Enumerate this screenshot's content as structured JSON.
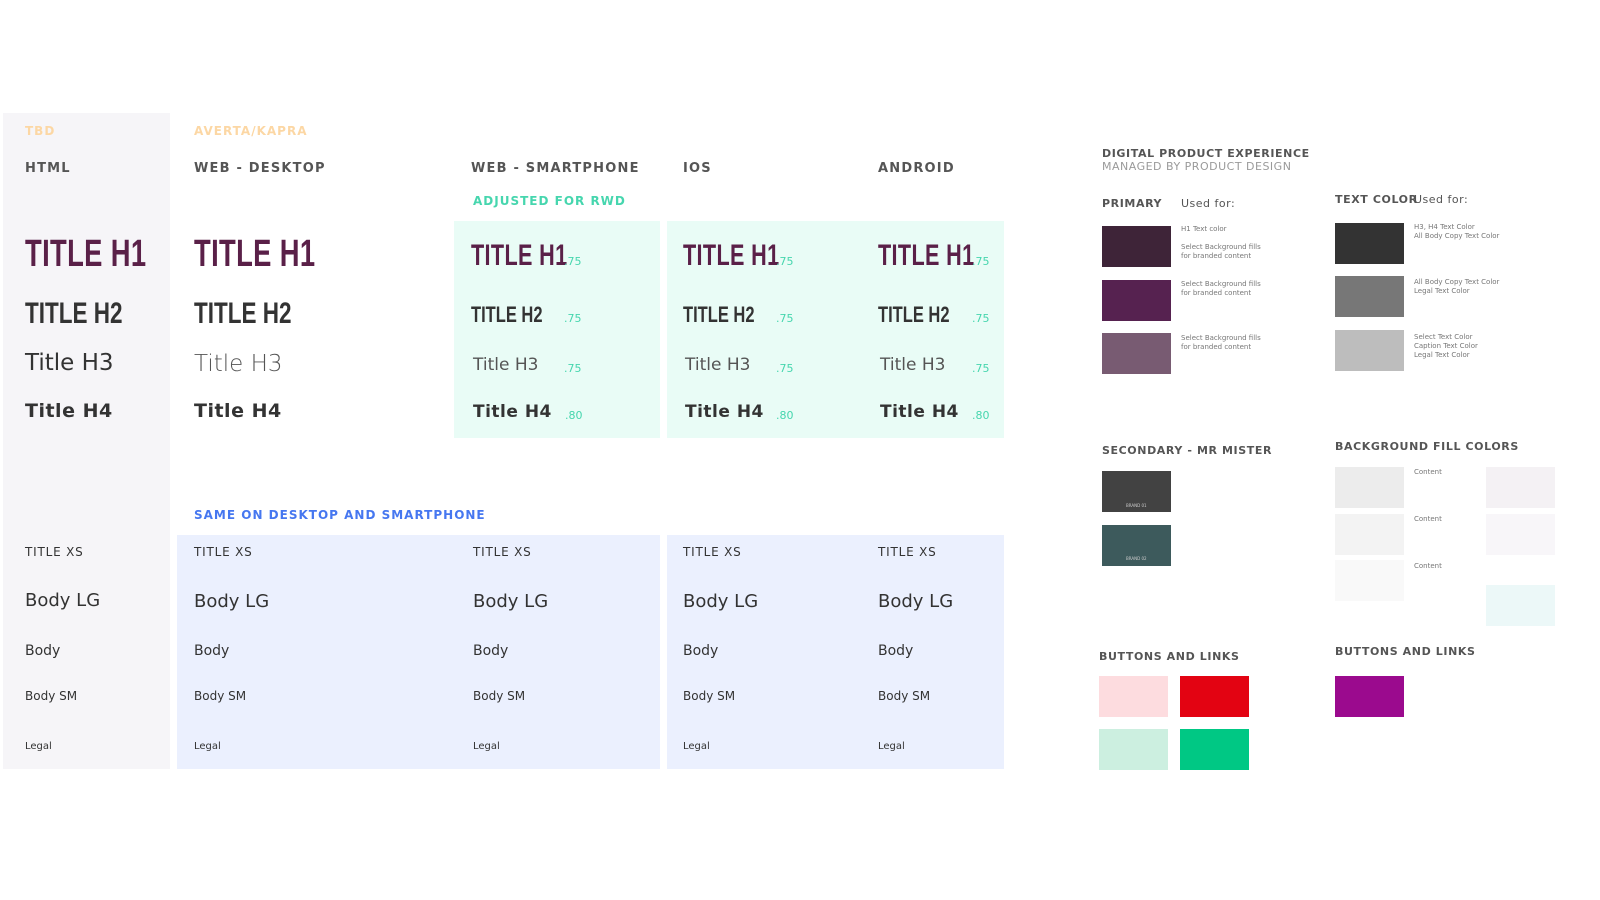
{
  "columns": {
    "tbd": "TBD",
    "html": "HTML",
    "averta": "AVERTA/KAPRA",
    "web_desktop": "WEB - DESKTOP",
    "web_smartphone": "WEB - SMARTPHONE",
    "ios": "IOS",
    "android": "ANDROID",
    "adjusted": "ADJUSTED FOR RWD",
    "same": "SAME ON DESKTOP AND SMARTPHONE"
  },
  "titles": {
    "h1": "TITLE H1",
    "h2": "TITLE H2",
    "h3": "Title H3",
    "h4": "Title H4"
  },
  "scales": {
    "s75": ".75",
    "s80": ".80"
  },
  "body": {
    "title_xs": "TITLE XS",
    "body_lg": "Body LG",
    "body": "Body",
    "body_sm": "Body SM",
    "legal": "Legal"
  },
  "colors_section": {
    "heading": "DIGITAL PRODUCT EXPERIENCE",
    "subheading": "MANAGED BY PRODUCT DESIGN",
    "primary": "PRIMARY",
    "used_for": "Used  for:",
    "text_color": "TEXT COLOR",
    "text_used_for": "Used  for:",
    "primary_notes": [
      [
        "H1 Text color",
        "Select Background fills",
        "for branded content"
      ],
      [
        "Select Background fills",
        "for branded content"
      ],
      [
        "Select Background fills",
        "for branded content"
      ]
    ],
    "text_notes": [
      [
        "H3, H4 Text Color",
        "All Body Copy Text Color"
      ],
      [
        "All Body Copy Text Color",
        "Legal Text Color"
      ],
      [
        "Select Text Color",
        "Caption Text Color",
        "Legal Text Color"
      ]
    ],
    "secondary": "SECONDARY - MR MISTER",
    "brand_01": "BRAND 01",
    "brand_02": "BRAND 02",
    "background_fill": "BACKGROUND FILL COLORS",
    "content": "Content",
    "buttons_links": "BUTTONS AND LINKS"
  },
  "palette": {
    "plum": "#5a2048",
    "primary_1": "#3e2438",
    "primary_2": "#562250",
    "primary_3": "#785b72",
    "text_1": "#333333",
    "text_2": "#777777",
    "text_3": "#bdbdbd",
    "secondary_1": "#424242",
    "secondary_2": "#3d5a5c",
    "mint_panel": "#e9fcf6",
    "blue_panel": "#ebf0fe",
    "grey_panel": "#f6f5f8",
    "btn_pink": "#fddcdf",
    "btn_red": "#e30312",
    "btn_mint": "#ccefe0",
    "btn_green": "#00c884",
    "btn_purple": "#9b0a8e",
    "tbd_orange": "#fcd7a4",
    "teal": "#46d6ae",
    "blue": "#4677f0"
  }
}
